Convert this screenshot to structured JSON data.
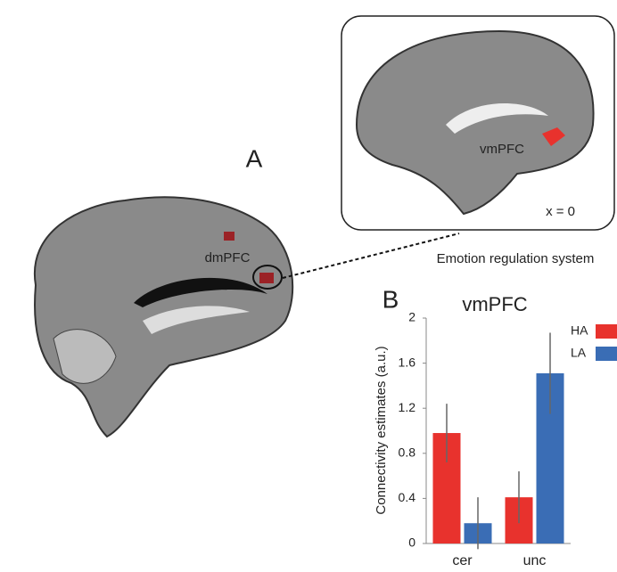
{
  "figure": {
    "panel_a_label": "A",
    "region_label": "dmPFC",
    "inset_region_label": "vmPFC",
    "inset_coordinate": "x = 0",
    "inset_caption": "Emotion regulation system"
  },
  "chart_data": {
    "type": "bar",
    "panel_label": "B",
    "title": "vmPFC",
    "y_label": "Connectivity estimates (a.u.)",
    "categories": [
      "cer",
      "unc"
    ],
    "series": [
      {
        "name": "HA",
        "color": "#e8322d",
        "values": [
          0.98,
          0.41
        ],
        "errors": [
          0.26,
          0.23
        ]
      },
      {
        "name": "LA",
        "color": "#3a6db5",
        "values": [
          0.18,
          1.51
        ],
        "errors": [
          0.23,
          0.36
        ]
      }
    ],
    "ylim": [
      0,
      2
    ],
    "yticks": [
      0,
      0.4,
      0.8,
      1.2,
      1.6,
      2
    ],
    "legend": "top-right"
  }
}
